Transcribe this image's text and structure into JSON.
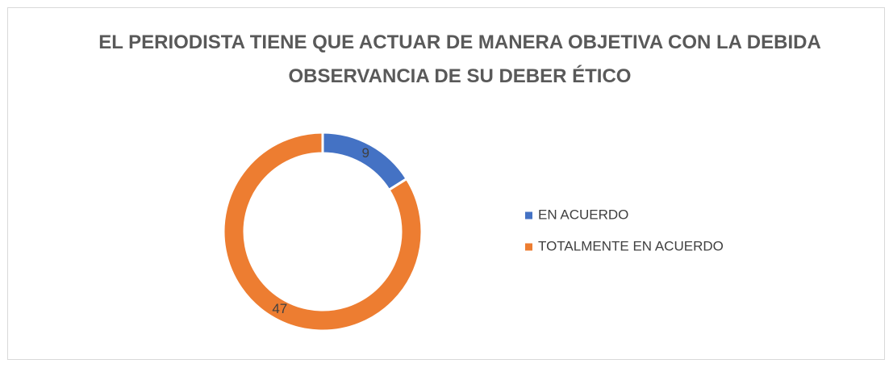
{
  "chart_data": {
    "type": "donut",
    "title": "EL PERIODISTA TIENE QUE ACTUAR DE MANERA OBJETIVA CON LA DEBIDA OBSERVANCIA DE SU DEBER ÉTICO",
    "categories": [
      "EN ACUERDO",
      "TOTALMENTE EN ACUERDO"
    ],
    "values": [
      9,
      47
    ],
    "colors": [
      "#4472c4",
      "#ed7d31"
    ],
    "legend": "right"
  }
}
